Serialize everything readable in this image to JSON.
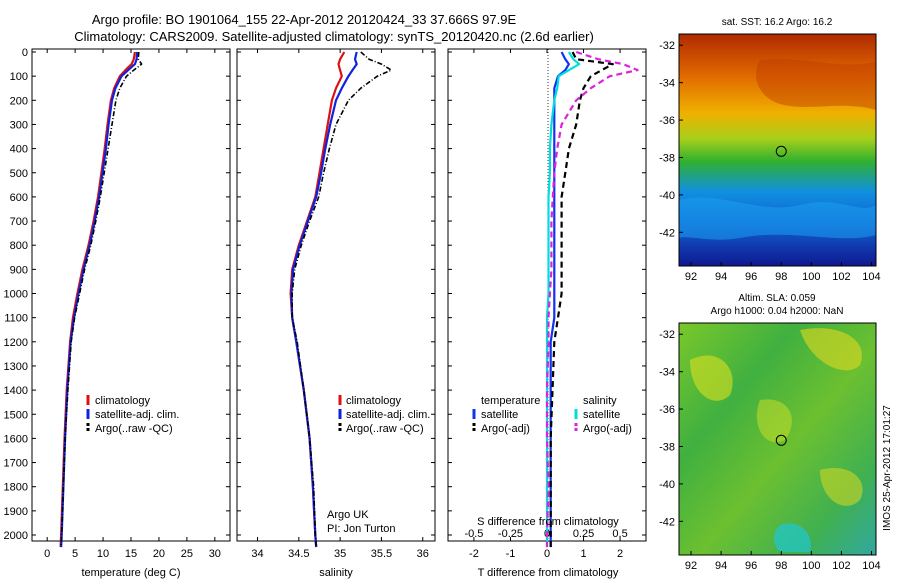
{
  "header": {
    "line1": "Argo profile: BO 1901064_155 22-Apr-2012 20120424_33 37.666S 97.9E",
    "line2": "Climatology: CARS2009. Satellite-adjusted climatology: synTS_20120420.nc (2.6d earlier)"
  },
  "credit": {
    "org": "Argo UK",
    "pi": "PI: Jon Turton"
  },
  "watermark": "IMOS 25-Apr-2012 17:01:27",
  "map_panels": {
    "sst_title": "sat. SST: 16.2 Argo: 16.2",
    "sla_title_1": "Altim. SLA: 0.059",
    "sla_title_2": "Argo h1000: 0.04 h2000: NaN",
    "lon_ticks": [
      "92",
      "94",
      "96",
      "98",
      "100",
      "102",
      "104"
    ],
    "lat_ticks": [
      "-32",
      "-34",
      "-36",
      "-38",
      "-40",
      "-42"
    ],
    "float_marker": {
      "lon": 98,
      "lat": -37.67
    }
  },
  "legend": {
    "climatology": "climatology",
    "sat_adj": "satellite-adj. clim.",
    "argo": "Argo(..raw -QC)",
    "diff_t_head": "temperature",
    "diff_s_head": "salinity",
    "satellite": "satellite",
    "argo_adj": "Argo(-adj)"
  },
  "colors": {
    "climatology": "#dd1111",
    "sat_adj": "#1122dd",
    "argo": "#000000",
    "t_satellite": "#1133ee",
    "s_satellite": "#00dddd",
    "s_argo": "#dd22dd"
  },
  "chart_data": [
    {
      "type": "line",
      "xlabel": "temperature (deg C)",
      "ylabel": "",
      "xlim": [
        -2,
        32
      ],
      "ylim": [
        2050,
        0
      ],
      "xticks": [
        0,
        5,
        10,
        15,
        20,
        25,
        30
      ],
      "yticks": [
        0,
        100,
        200,
        300,
        400,
        500,
        600,
        700,
        800,
        900,
        1000,
        1100,
        1200,
        1300,
        1400,
        1500,
        1600,
        1700,
        1800,
        1900,
        2000
      ],
      "depth": [
        0,
        30,
        50,
        75,
        100,
        150,
        200,
        300,
        400,
        500,
        600,
        700,
        800,
        900,
        1000,
        1100,
        1200,
        1400,
        1600,
        1800,
        2000,
        2050
      ],
      "series": [
        {
          "name": "climatology",
          "values": [
            15.7,
            15.5,
            15.1,
            14.0,
            13.0,
            12.0,
            11.4,
            10.8,
            10.3,
            9.7,
            9.1,
            8.3,
            7.4,
            6.3,
            5.4,
            4.6,
            4.1,
            3.5,
            3.1,
            2.8,
            2.5,
            2.4
          ]
        },
        {
          "name": "satellite-adj. clim.",
          "values": [
            16.1,
            16.0,
            15.7,
            14.5,
            13.3,
            12.2,
            11.6,
            11.0,
            10.5,
            9.9,
            9.3,
            8.5,
            7.6,
            6.5,
            5.6,
            4.8,
            4.2,
            3.6,
            3.2,
            2.9,
            2.6,
            2.5
          ]
        },
        {
          "name": "Argo(..raw -QC)",
          "values": [
            16.4,
            16.3,
            16.9,
            15.5,
            14.2,
            13.0,
            12.3,
            11.6,
            10.9,
            10.2,
            9.5,
            8.7,
            7.8,
            6.7,
            5.8,
            4.9,
            4.3,
            3.7,
            3.2,
            2.9,
            2.6,
            2.5
          ]
        }
      ]
    },
    {
      "type": "line",
      "xlabel": "salinity",
      "ylabel": "",
      "xlim": [
        33.8,
        36.1
      ],
      "ylim": [
        2050,
        0
      ],
      "xticks": [
        34,
        34.5,
        35,
        35.5,
        36
      ],
      "yticks": [
        0,
        100,
        200,
        300,
        400,
        500,
        600,
        700,
        800,
        900,
        1000,
        1100,
        1200,
        1300,
        1400,
        1500,
        1600,
        1700,
        1800,
        1900,
        2000
      ],
      "depth": [
        0,
        30,
        50,
        75,
        100,
        150,
        200,
        300,
        400,
        500,
        600,
        700,
        800,
        900,
        1000,
        1100,
        1200,
        1400,
        1600,
        1800,
        2000,
        2050
      ],
      "series": [
        {
          "name": "climatology",
          "values": [
            35.05,
            35.0,
            34.98,
            35.0,
            35.02,
            34.95,
            34.9,
            34.85,
            34.8,
            34.75,
            34.7,
            34.6,
            34.5,
            34.42,
            34.4,
            34.42,
            34.47,
            34.56,
            34.63,
            34.67,
            34.7,
            34.71
          ]
        },
        {
          "name": "satellite-adj. clim.",
          "values": [
            35.2,
            35.18,
            35.2,
            35.15,
            35.1,
            35.02,
            34.95,
            34.88,
            34.82,
            34.77,
            34.71,
            34.61,
            34.51,
            34.43,
            34.41,
            34.42,
            34.47,
            34.56,
            34.63,
            34.67,
            34.7,
            34.71
          ]
        },
        {
          "name": "Argo(..raw -QC)",
          "values": [
            35.25,
            35.35,
            35.5,
            35.62,
            35.45,
            35.25,
            35.1,
            34.95,
            34.87,
            34.8,
            34.74,
            34.63,
            34.53,
            34.45,
            34.42,
            34.42,
            34.48,
            34.56,
            34.63,
            34.68,
            34.7,
            34.71
          ]
        }
      ]
    },
    {
      "type": "line",
      "xlabel": "T difference from climatology",
      "x2label": "S difference from climatology",
      "xlim": [
        -2.6,
        2.6
      ],
      "x2lim": [
        -0.65,
        0.65
      ],
      "ylim": [
        2050,
        0
      ],
      "xticks": [
        -2,
        -1,
        0,
        1,
        2
      ],
      "x2ticks": [
        "-0.5",
        "-0.25",
        "0",
        "0.25",
        "0.5"
      ],
      "yticks": [
        0,
        100,
        200,
        300,
        400,
        500,
        600,
        700,
        800,
        900,
        1000,
        1100,
        1200,
        1300,
        1400,
        1500,
        1600,
        1700,
        1800,
        1900,
        2000
      ],
      "depth": [
        0,
        30,
        50,
        75,
        100,
        150,
        200,
        300,
        400,
        500,
        600,
        700,
        800,
        900,
        1000,
        1100,
        1200,
        1400,
        1600,
        1800,
        2000,
        2050
      ],
      "series": [
        {
          "name": "temperature satellite",
          "axis": "T",
          "values": [
            0.4,
            0.5,
            0.6,
            0.5,
            0.3,
            0.2,
            0.2,
            0.2,
            0.2,
            0.2,
            0.2,
            0.2,
            0.2,
            0.2,
            0.2,
            0.2,
            0.1,
            0.1,
            0.1,
            0.1,
            0.1,
            0.1
          ]
        },
        {
          "name": "temperature Argo(-adj)",
          "axis": "T",
          "values": [
            0.7,
            0.8,
            1.8,
            1.5,
            1.2,
            1.0,
            0.9,
            0.8,
            0.6,
            0.5,
            0.4,
            0.4,
            0.4,
            0.4,
            0.4,
            0.3,
            0.2,
            0.15,
            0.1,
            0.1,
            0.1,
            0.1
          ]
        },
        {
          "name": "salinity satellite",
          "axis": "S",
          "values": [
            0.15,
            0.18,
            0.22,
            0.15,
            0.08,
            0.07,
            0.05,
            0.03,
            0.02,
            0.02,
            0.01,
            0.01,
            0.01,
            0.01,
            0.01,
            0.0,
            0.0,
            0.0,
            0.0,
            0.0,
            0.0,
            0.0
          ]
        },
        {
          "name": "salinity Argo(-adj)",
          "axis": "S",
          "values": [
            0.2,
            0.35,
            0.52,
            0.62,
            0.43,
            0.3,
            0.2,
            0.1,
            0.07,
            0.05,
            0.04,
            0.03,
            0.03,
            0.03,
            0.02,
            0.01,
            0.01,
            0.0,
            0.0,
            0.01,
            0.0,
            0.0
          ]
        }
      ]
    }
  ]
}
